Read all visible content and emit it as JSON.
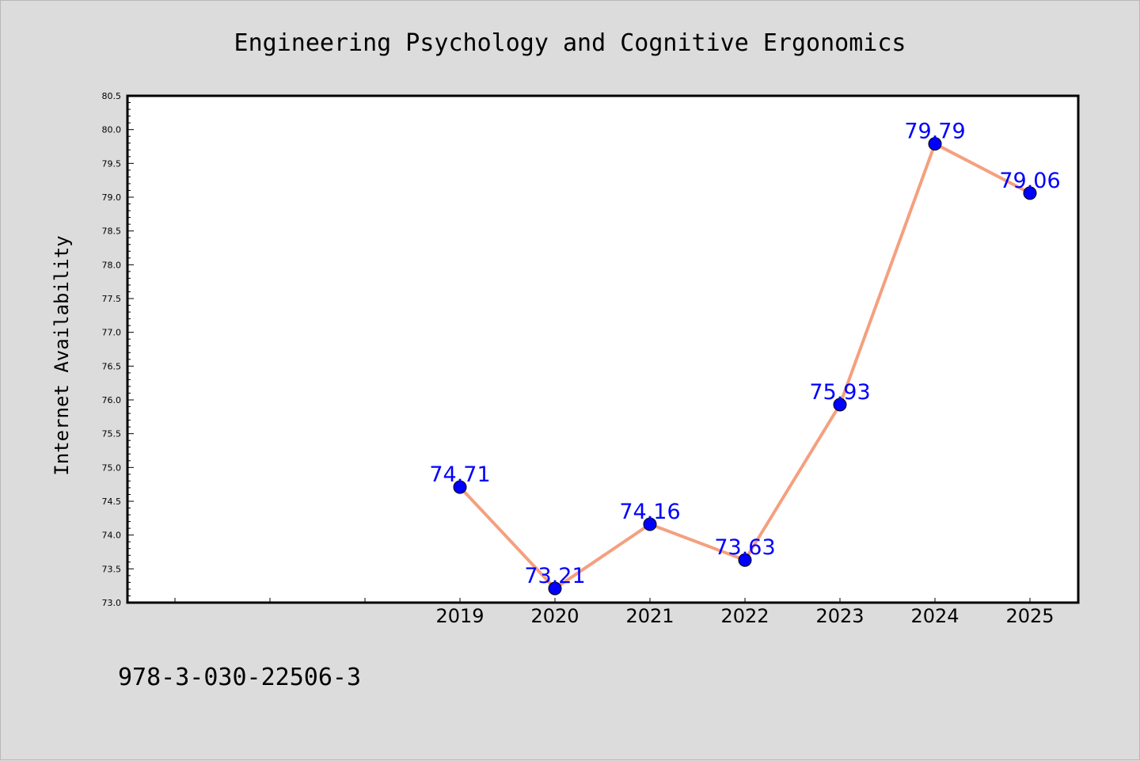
{
  "footer_text": "978-3-030-22506-3",
  "colors": {
    "background": "#dcdcdc",
    "plot_background": "#ffffff",
    "line": "#f4a07f",
    "marker": "#0000ff",
    "data_label": "#0000ff"
  },
  "chart_data": {
    "type": "line",
    "title": "Engineering Psychology and Cognitive Ergonomics",
    "xlabel": "",
    "ylabel": "Internet Availability",
    "categories": [
      "2019",
      "2020",
      "2021",
      "2022",
      "2023",
      "2024",
      "2025"
    ],
    "series": [
      {
        "values": [
          74.71,
          73.21,
          74.16,
          73.63,
          75.93,
          79.79,
          79.06
        ],
        "labels": [
          "74.71",
          "73.21",
          "74.16",
          "73.63",
          "75.93",
          "79.79",
          "79.06"
        ]
      }
    ],
    "ylim": [
      73.0,
      80.5
    ],
    "yticks": [
      "73.0",
      "73.5",
      "74.0",
      "74.5",
      "75.0",
      "75.5",
      "76.0",
      "76.5",
      "77.0",
      "77.5",
      "78.0",
      "78.5",
      "79.0",
      "79.5",
      "80.0",
      "80.5"
    ],
    "grid": false,
    "legend": false
  }
}
